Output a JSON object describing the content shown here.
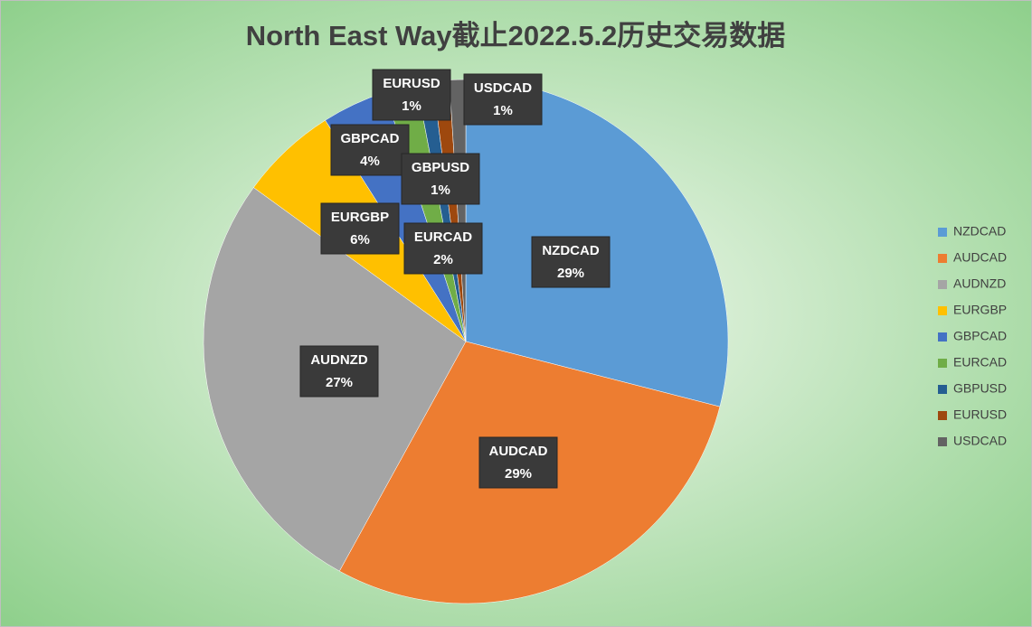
{
  "chart_data": {
    "type": "pie",
    "title": "North East Way截止2022.5.2历史交易数据",
    "categories": [
      "NZDCAD",
      "AUDCAD",
      "AUDNZD",
      "EURGBP",
      "GBPCAD",
      "EURCAD",
      "GBPUSD",
      "EURUSD",
      "USDCAD"
    ],
    "values": [
      29,
      29,
      27,
      6,
      4,
      2,
      1,
      1,
      1
    ],
    "value_labels": [
      "29%",
      "29%",
      "27%",
      "6%",
      "4%",
      "2%",
      "1%",
      "1%",
      "1%"
    ],
    "colors": [
      "#5b9bd5",
      "#ed7d31",
      "#a5a5a5",
      "#ffc000",
      "#4472c4",
      "#70ad47",
      "#255e91",
      "#9e480e",
      "#636363"
    ],
    "legend": "right"
  }
}
